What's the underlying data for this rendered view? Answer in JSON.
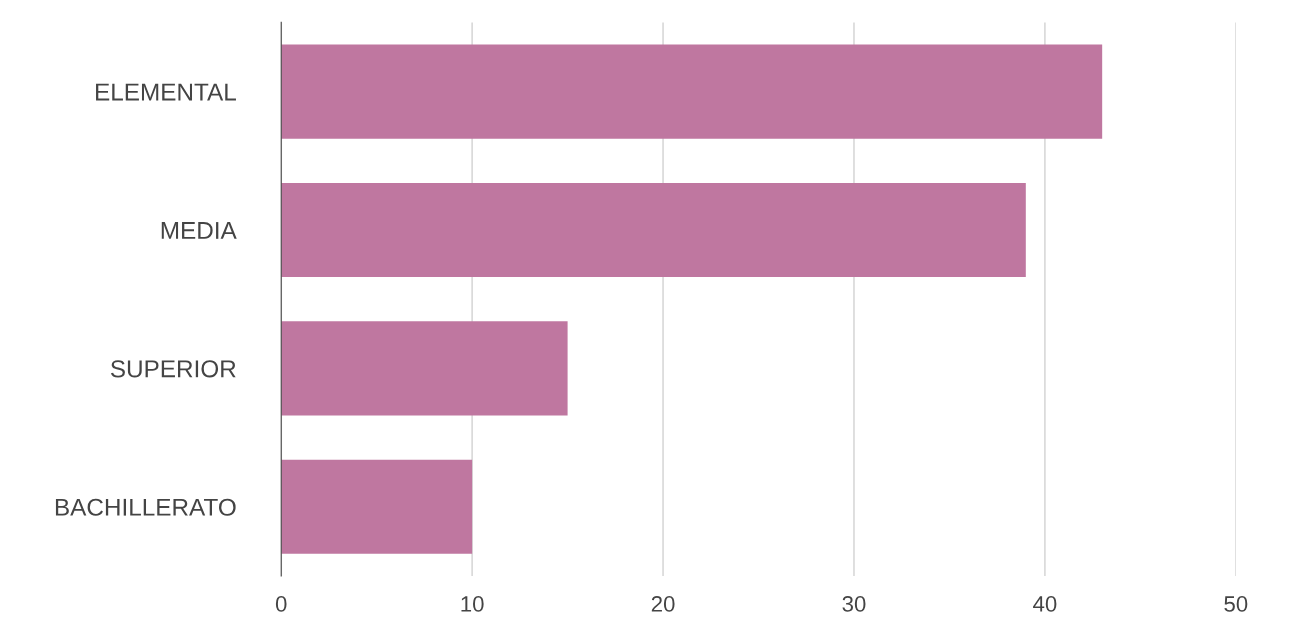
{
  "chart_data": {
    "type": "bar",
    "orientation": "horizontal",
    "categories": [
      "ELEMENTAL",
      "MEDIA",
      "SUPERIOR",
      "BACHILLERATO"
    ],
    "values": [
      43,
      39,
      15,
      10
    ],
    "color": "#bf77a0",
    "xlim": [
      0,
      50
    ],
    "xticks": [
      0,
      10,
      20,
      30,
      40,
      50
    ],
    "grid": "x"
  }
}
